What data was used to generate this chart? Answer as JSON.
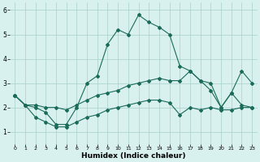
{
  "xlabel": "Humidex (Indice chaleur)",
  "x": [
    0,
    1,
    2,
    3,
    4,
    5,
    6,
    7,
    8,
    9,
    10,
    11,
    12,
    13,
    14,
    15,
    16,
    17,
    18,
    19,
    20,
    21,
    22,
    23
  ],
  "y_main": [
    2.5,
    2.1,
    2.0,
    1.8,
    1.3,
    1.3,
    2.0,
    3.0,
    3.3,
    4.6,
    5.2,
    5.0,
    5.8,
    5.5,
    5.3,
    5.0,
    3.7,
    3.5,
    3.1,
    2.7,
    2.0,
    2.6,
    2.1,
    2.0
  ],
  "y_upper": [
    2.5,
    2.1,
    2.1,
    2.0,
    2.0,
    1.9,
    2.1,
    2.3,
    2.5,
    2.6,
    2.7,
    2.9,
    3.0,
    3.1,
    3.2,
    3.1,
    3.1,
    3.5,
    3.1,
    3.0,
    2.0,
    2.6,
    3.5,
    3.0
  ],
  "y_lower": [
    2.5,
    2.1,
    1.6,
    1.4,
    1.2,
    1.2,
    1.4,
    1.6,
    1.7,
    1.9,
    2.0,
    2.1,
    2.2,
    2.3,
    2.3,
    2.2,
    1.7,
    2.0,
    1.9,
    2.0,
    1.9,
    1.9,
    2.0,
    2.0
  ],
  "line_color": "#1a6b5a",
  "bg_color": "#d8f0ee",
  "grid_color": "#a8d0cc",
  "ylim": [
    0.5,
    6.3
  ],
  "xlim": [
    -0.5,
    23.5
  ],
  "yticks": [
    1,
    2,
    3,
    4,
    5,
    6
  ],
  "xticks": [
    0,
    1,
    2,
    3,
    4,
    5,
    6,
    7,
    8,
    9,
    10,
    11,
    12,
    13,
    14,
    15,
    16,
    17,
    18,
    19,
    20,
    21,
    22,
    23
  ]
}
